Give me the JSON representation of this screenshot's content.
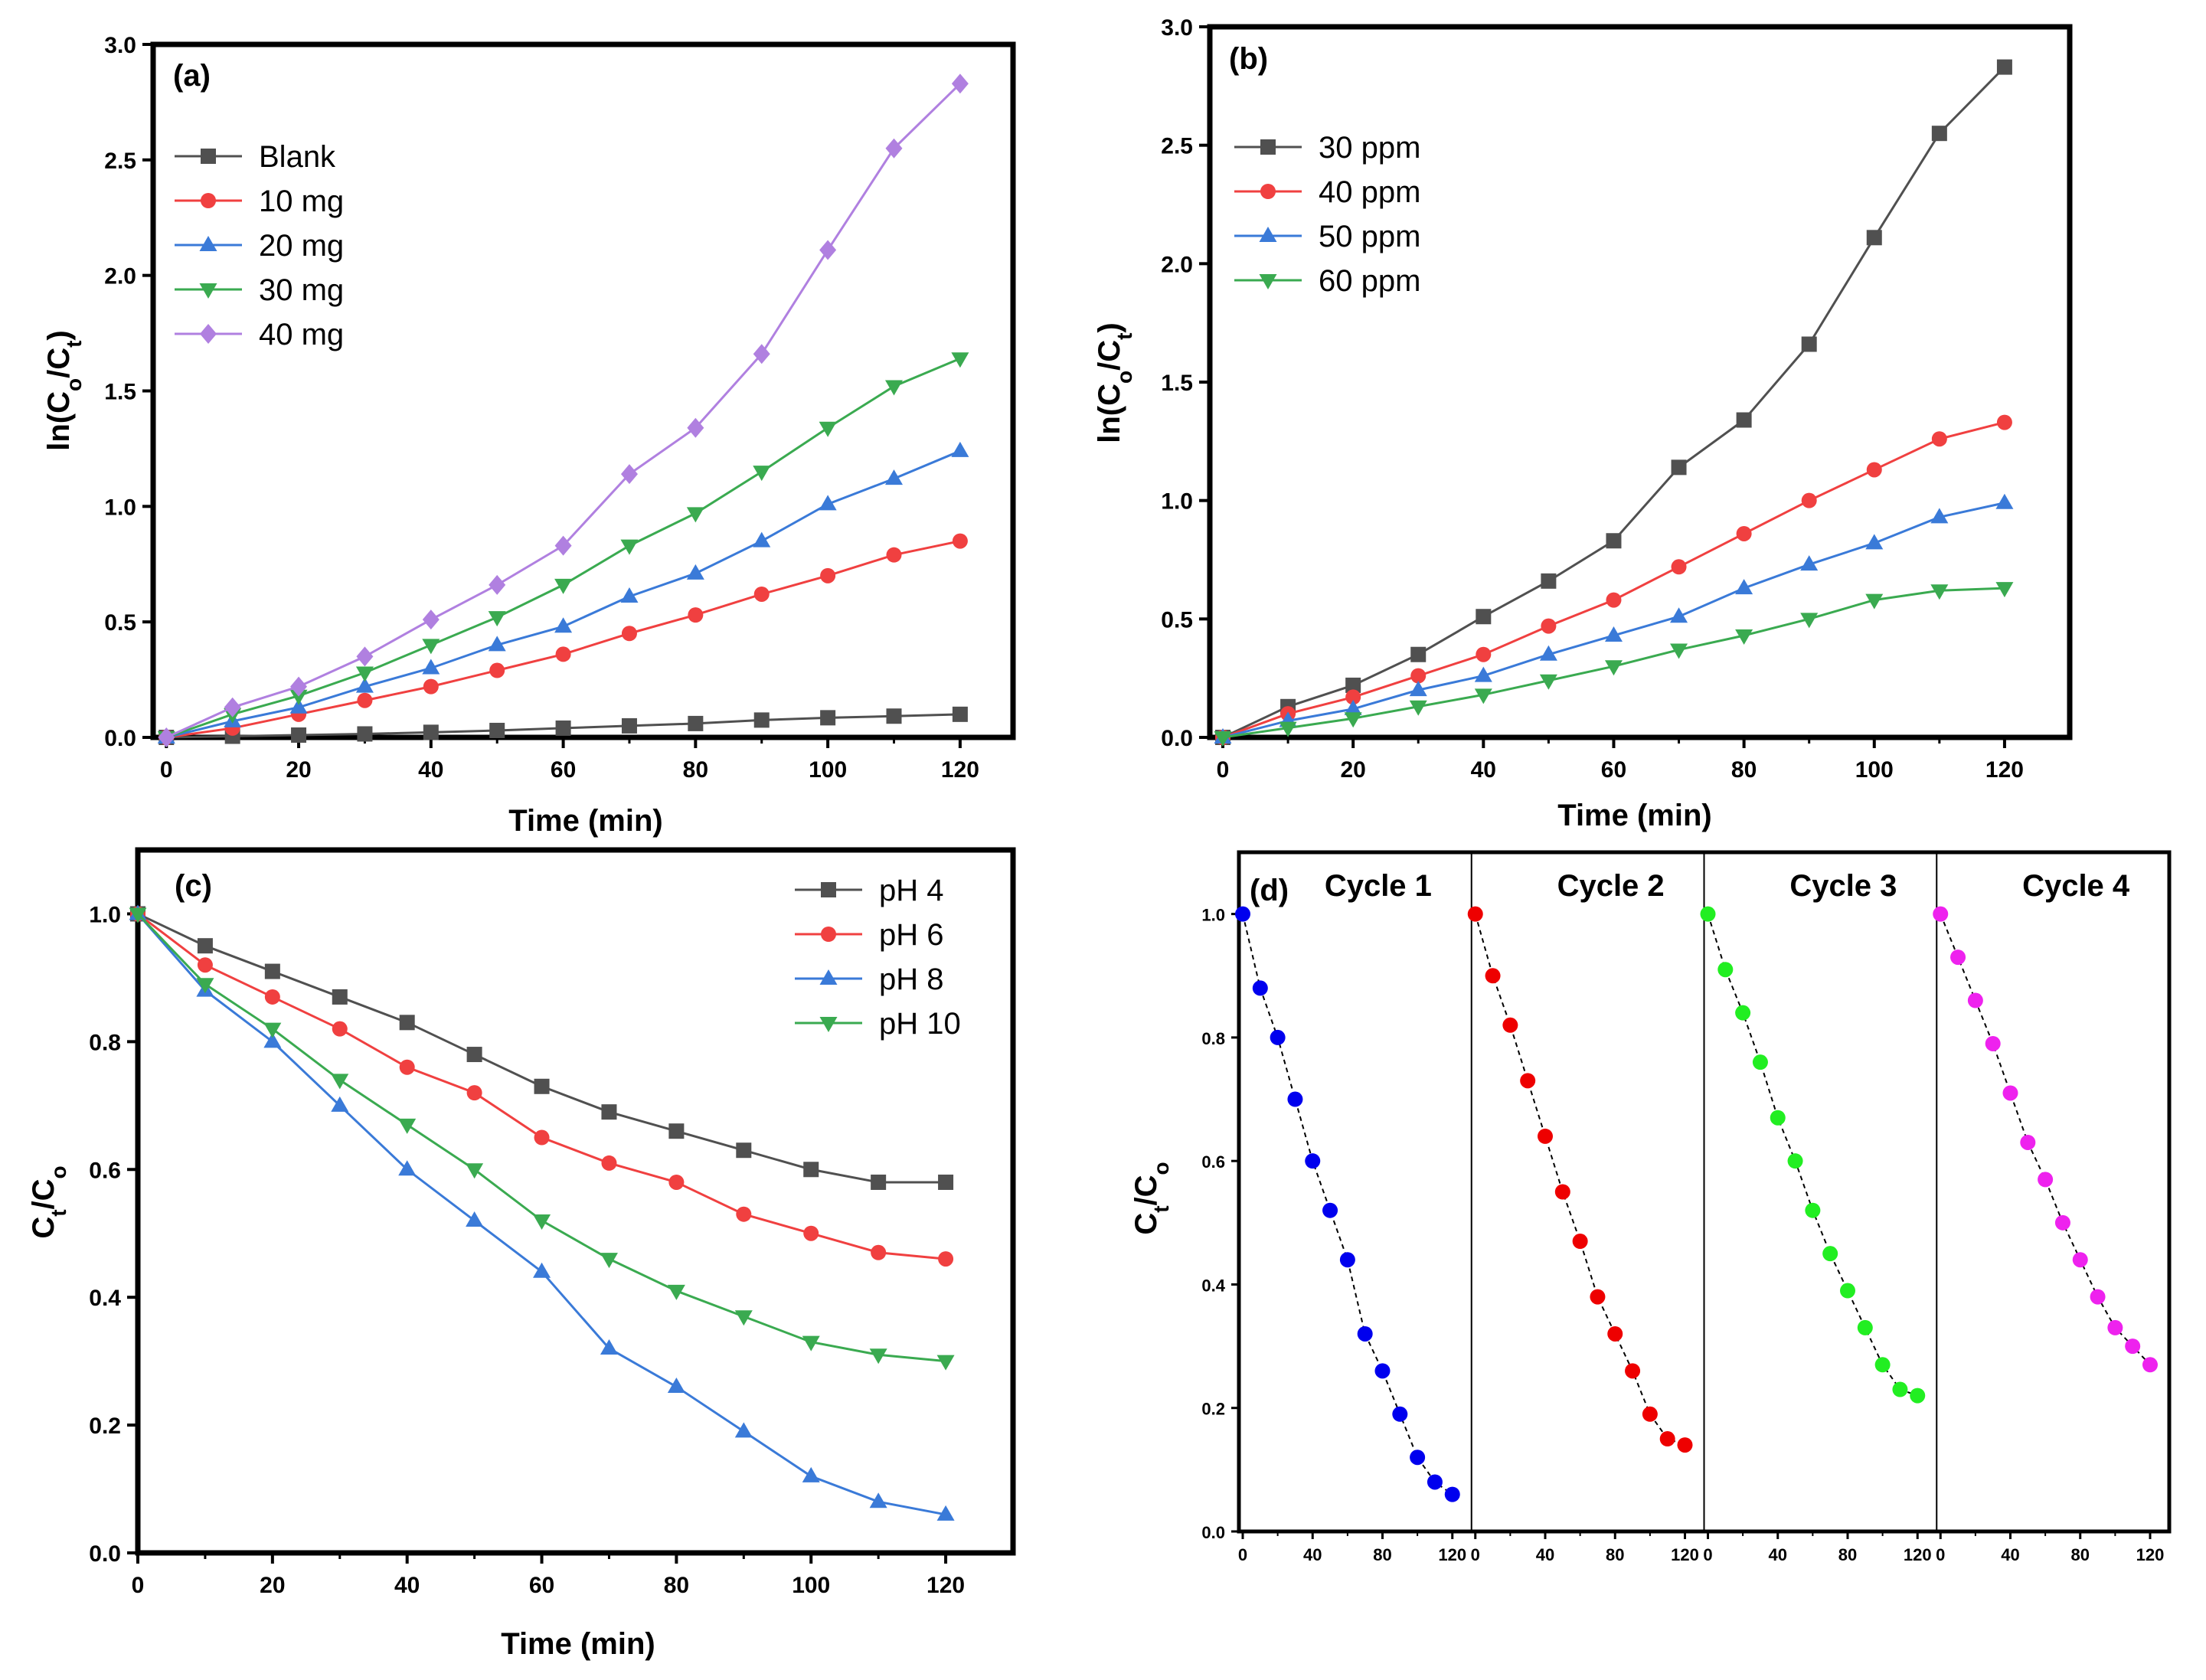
{
  "chart_data": [
    {
      "type": "line",
      "panel_label": "(a)",
      "xlabel": "Time (min)",
      "ylabel": "ln(Co/Ct)",
      "ylabel_main": "ln(C",
      "ylabel_sub1": "o",
      "ylabel_mid": "/C",
      "ylabel_sub2": "t",
      "ylabel_end": ")",
      "xlim": [
        -2,
        128
      ],
      "ylim": [
        0.0,
        3.0
      ],
      "xticks": [
        0,
        20,
        40,
        60,
        80,
        100,
        120
      ],
      "yticks": [
        "0.0",
        "0.5",
        "1.0",
        "1.5",
        "2.0",
        "2.5",
        "3.0"
      ],
      "legend_position": "top-left",
      "x": [
        0,
        10,
        20,
        30,
        40,
        50,
        60,
        70,
        80,
        90,
        100,
        110,
        120
      ],
      "series": [
        {
          "name": "Blank",
          "color": "#505050",
          "marker": "square",
          "values": [
            0.0,
            0.005,
            0.01,
            0.015,
            0.022,
            0.03,
            0.04,
            0.05,
            0.06,
            0.075,
            0.085,
            0.092,
            0.1
          ]
        },
        {
          "name": "10 mg",
          "color": "#f04040",
          "marker": "circle",
          "values": [
            0.0,
            0.04,
            0.1,
            0.16,
            0.22,
            0.29,
            0.36,
            0.45,
            0.53,
            0.62,
            0.7,
            0.79,
            0.85
          ]
        },
        {
          "name": "20 mg",
          "color": "#3a7ad8",
          "marker": "triangle-up",
          "values": [
            0.0,
            0.07,
            0.13,
            0.22,
            0.3,
            0.4,
            0.48,
            0.61,
            0.71,
            0.85,
            1.01,
            1.12,
            1.24
          ]
        },
        {
          "name": "30 mg",
          "color": "#3aaa50",
          "marker": "triangle-down",
          "values": [
            0.0,
            0.1,
            0.18,
            0.28,
            0.4,
            0.52,
            0.66,
            0.83,
            0.97,
            1.15,
            1.34,
            1.52,
            1.64
          ]
        },
        {
          "name": "40 mg",
          "color": "#b080e0",
          "marker": "diamond",
          "values": [
            0.0,
            0.13,
            0.22,
            0.35,
            0.51,
            0.66,
            0.83,
            1.14,
            1.34,
            1.66,
            2.11,
            2.55,
            2.83
          ]
        }
      ]
    },
    {
      "type": "line",
      "panel_label": "(b)",
      "xlabel": "Time (min)",
      "ylabel": "ln(Co/Ct)",
      "ylabel_main": "ln(C",
      "ylabel_sub1": "o",
      "ylabel_mid": "/C",
      "ylabel_sub2": "t",
      "ylabel_end": ")",
      "xlim": [
        -2,
        130
      ],
      "ylim": [
        0.0,
        3.0
      ],
      "xticks": [
        0,
        20,
        40,
        60,
        80,
        100,
        120
      ],
      "yticks": [
        "0.0",
        "0.5",
        "1.0",
        "1.5",
        "2.0",
        "2.5",
        "3.0"
      ],
      "legend_position": "top-left",
      "x": [
        0,
        10,
        20,
        30,
        40,
        50,
        60,
        70,
        80,
        90,
        100,
        110,
        120
      ],
      "series": [
        {
          "name": "30 ppm",
          "color": "#505050",
          "marker": "square",
          "values": [
            0.0,
            0.13,
            0.22,
            0.35,
            0.51,
            0.66,
            0.83,
            1.14,
            1.34,
            1.66,
            2.11,
            2.55,
            2.83
          ]
        },
        {
          "name": "40 ppm",
          "color": "#f04040",
          "marker": "circle",
          "values": [
            0.0,
            0.1,
            0.17,
            0.26,
            0.35,
            0.47,
            0.58,
            0.72,
            0.86,
            1.0,
            1.13,
            1.26,
            1.33
          ]
        },
        {
          "name": "50 ppm",
          "color": "#3a7ad8",
          "marker": "triangle-up",
          "values": [
            0.0,
            0.07,
            0.12,
            0.2,
            0.26,
            0.35,
            0.43,
            0.51,
            0.63,
            0.73,
            0.82,
            0.93,
            0.99
          ]
        },
        {
          "name": "60 ppm",
          "color": "#3aaa50",
          "marker": "triangle-down",
          "values": [
            0.0,
            0.04,
            0.08,
            0.13,
            0.18,
            0.24,
            0.3,
            0.37,
            0.43,
            0.5,
            0.58,
            0.62,
            0.63
          ]
        }
      ]
    },
    {
      "type": "line",
      "panel_label": "(c)",
      "xlabel": "Time (min)",
      "ylabel": "Ct/Co",
      "ylabel_main": "C",
      "ylabel_sub1": "t",
      "ylabel_mid": "/C",
      "ylabel_sub2": "o",
      "ylabel_end": "",
      "xlim": [
        0,
        130
      ],
      "ylim": [
        0.0,
        1.1
      ],
      "xticks": [
        0,
        20,
        40,
        60,
        80,
        100,
        120
      ],
      "yticks": [
        "0.0",
        "0.2",
        "0.4",
        "0.6",
        "0.8",
        "1.0"
      ],
      "legend_position": "top-right",
      "x": [
        0,
        10,
        20,
        30,
        40,
        50,
        60,
        70,
        80,
        90,
        100,
        110,
        120
      ],
      "series": [
        {
          "name": "pH 4",
          "color": "#505050",
          "marker": "square",
          "values": [
            1.0,
            0.95,
            0.91,
            0.87,
            0.83,
            0.78,
            0.73,
            0.69,
            0.66,
            0.63,
            0.6,
            0.58,
            0.58
          ]
        },
        {
          "name": "pH 6",
          "color": "#f04040",
          "marker": "circle",
          "values": [
            1.0,
            0.92,
            0.87,
            0.82,
            0.76,
            0.72,
            0.65,
            0.61,
            0.58,
            0.53,
            0.5,
            0.47,
            0.46
          ]
        },
        {
          "name": "pH 8",
          "color": "#3a7ad8",
          "marker": "triangle-up",
          "values": [
            1.0,
            0.88,
            0.8,
            0.7,
            0.6,
            0.52,
            0.44,
            0.32,
            0.26,
            0.19,
            0.12,
            0.08,
            0.06
          ]
        },
        {
          "name": "pH 10",
          "color": "#3aaa50",
          "marker": "triangle-down",
          "values": [
            1.0,
            0.89,
            0.82,
            0.74,
            0.67,
            0.6,
            0.52,
            0.46,
            0.41,
            0.37,
            0.33,
            0.31,
            0.3
          ]
        }
      ]
    },
    {
      "type": "scatter",
      "panel_label": "(d)",
      "ylabel": "Ct/Co",
      "ylabel_main": "C",
      "ylabel_sub1": "t",
      "ylabel_mid": "/C",
      "ylabel_sub2": "o",
      "ylabel_end": "",
      "ylim": [
        0.0,
        1.1
      ],
      "yticks": [
        "0.0",
        "0.2",
        "0.4",
        "0.6",
        "0.8",
        "1.0"
      ],
      "xticks": [
        "0",
        "40",
        "80",
        "120"
      ],
      "xticks_minor": [
        "20",
        "60",
        "100"
      ],
      "x": [
        0,
        10,
        20,
        30,
        40,
        50,
        60,
        70,
        80,
        90,
        100,
        110,
        120
      ],
      "cycles": [
        {
          "name": "Cycle 1",
          "color": "#0000ee",
          "values": [
            1.0,
            0.88,
            0.8,
            0.7,
            0.6,
            0.52,
            0.44,
            0.32,
            0.26,
            0.19,
            0.12,
            0.08,
            0.06
          ]
        },
        {
          "name": "Cycle 2",
          "color": "#ee0000",
          "values": [
            1.0,
            0.9,
            0.82,
            0.73,
            0.64,
            0.55,
            0.47,
            0.38,
            0.32,
            0.26,
            0.19,
            0.15,
            0.14
          ]
        },
        {
          "name": "Cycle 3",
          "color": "#22ee22",
          "values": [
            1.0,
            0.91,
            0.84,
            0.76,
            0.67,
            0.6,
            0.52,
            0.45,
            0.39,
            0.33,
            0.27,
            0.23,
            0.22
          ]
        },
        {
          "name": "Cycle 4",
          "color": "#ee22ee",
          "values": [
            1.0,
            0.93,
            0.86,
            0.79,
            0.71,
            0.63,
            0.57,
            0.5,
            0.44,
            0.38,
            0.33,
            0.3,
            0.27
          ]
        }
      ]
    }
  ]
}
